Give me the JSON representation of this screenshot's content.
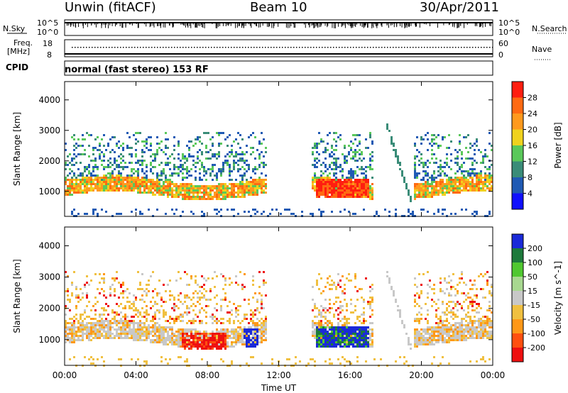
{
  "header": {
    "station": "Unwin (fitACF)",
    "beam": "Beam 10",
    "date": "30/Apr/2011"
  },
  "status_panels": {
    "nsky_label": "N.Sky",
    "nsky_ticks": [
      "10^5",
      "10^0"
    ],
    "nsearch_label": "N.Search",
    "freq_label_line1": "Freq.",
    "freq_label_line2": "[MHz]",
    "freq_ticks": [
      "18",
      "8"
    ],
    "nave_label": "Nave",
    "nave_ticks": [
      "60",
      "0"
    ],
    "cpid_label": "CPID",
    "cpid_text": "normal (fast stereo) 153 RF"
  },
  "chart_data": [
    {
      "type": "heatmap",
      "title": "",
      "parameter": "Power",
      "ylabel": "Slant Range [km]",
      "xlabel": "",
      "x_range_hours": [
        0,
        24
      ],
      "x_ticks": [
        "00:00",
        "04:00",
        "08:00",
        "12:00",
        "16:00",
        "20:00",
        "00:00"
      ],
      "ylim": [
        180,
        4600
      ],
      "y_ticks": [
        1000,
        2000,
        3000,
        4000
      ],
      "colorbar_label": "Power [dB]",
      "colorbar_ticks": [
        4,
        8,
        12,
        16,
        20,
        24,
        28
      ],
      "colorbar_colors": [
        "#1010ff",
        "#205ab4",
        "#3a8c78",
        "#5ac85a",
        "#f0d21e",
        "#ff9a1e",
        "#ff6a12",
        "#ff1e10"
      ],
      "notable_regions": [
        {
          "time_h": [
            0,
            24
          ],
          "range_km": [
            900,
            1400
          ],
          "power_db": 20
        },
        {
          "time_h": [
            14,
            17
          ],
          "range_km": [
            900,
            1400
          ],
          "power_db": 30
        },
        {
          "time_h": [
            10,
            12
          ],
          "range_km": [
            1500,
            2800
          ],
          "power_db": 8
        }
      ]
    },
    {
      "type": "heatmap",
      "title": "",
      "parameter": "Velocity",
      "ylabel": "Slant Range [km]",
      "xlabel": "Time UT",
      "x_range_hours": [
        0,
        24
      ],
      "x_ticks": [
        "00:00",
        "04:00",
        "08:00",
        "12:00",
        "16:00",
        "20:00",
        "00:00"
      ],
      "ylim": [
        180,
        4600
      ],
      "y_ticks": [
        1000,
        2000,
        3000,
        4000
      ],
      "colorbar_label": "Velocity [m s^-1]",
      "colorbar_ticks": [
        200,
        100,
        50,
        15,
        -15,
        -50,
        -100,
        -200
      ],
      "colorbar_colors": [
        "#1a2ad8",
        "#1e7a3c",
        "#50c830",
        "#a8d890",
        "#c8c8c8",
        "#f0c040",
        "#ff9818",
        "#ff5010",
        "#ee1010"
      ],
      "notable_regions": [
        {
          "time_h": [
            14,
            17
          ],
          "range_km": [
            900,
            1400
          ],
          "velocity_ms": 180
        },
        {
          "time_h": [
            6.5,
            9
          ],
          "range_km": [
            700,
            1200
          ],
          "velocity_ms": -200
        },
        {
          "time_h": [
            0,
            24
          ],
          "range_km": [
            900,
            1500
          ],
          "velocity_ms": 0
        }
      ]
    }
  ]
}
